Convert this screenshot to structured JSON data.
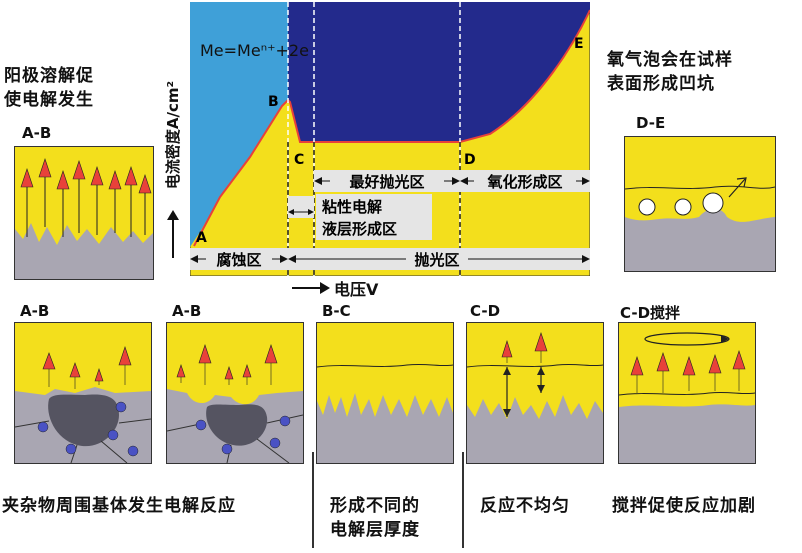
{
  "top_left": {
    "line1": "阳极溶解促",
    "line2": "使电解发生",
    "panel_label": "A-B"
  },
  "top_right": {
    "line1": "氧气泡会在试样",
    "line2": "表面形成凹坑",
    "panel_label": "D-E"
  },
  "main_chart": {
    "y_axis_label": "电流密度A/cm²",
    "x_axis_label": "电压V",
    "equation": "Me=Meⁿ⁺+2e",
    "points": {
      "a": "A",
      "b": "B",
      "c": "C",
      "d": "D",
      "e": "E"
    },
    "regions": {
      "best_polish": "最好抛光区",
      "oxide": "氧化形成区",
      "viscous1": "粘性电解",
      "viscous2": "液层形成区",
      "corrosion": "腐蚀区",
      "polish": "抛光区"
    }
  },
  "bottom_panels": [
    {
      "label": "A-B"
    },
    {
      "label": "A-B"
    },
    {
      "label": "B-C"
    },
    {
      "label": "C-D"
    },
    {
      "label": "C-D搅拌"
    }
  ],
  "bottom_captions": {
    "c1": "夹杂物周围基体发生电解反应",
    "c2_line1": "形成不同的",
    "c2_line2": "电解层厚度",
    "c3": "反应不均匀",
    "c4": "搅拌促使反应加剧"
  },
  "colors": {
    "electrolyte": "#f3df1c",
    "metal": "#a9a6b2",
    "chart_blue": "#3fa0d8",
    "chart_navy": "#232a8c",
    "arrow_red": "#e8413a",
    "inclusion": "#555461",
    "particle": "#4a52c4",
    "curve_red": "#e8413a",
    "label_box": "#e5e5e5"
  }
}
